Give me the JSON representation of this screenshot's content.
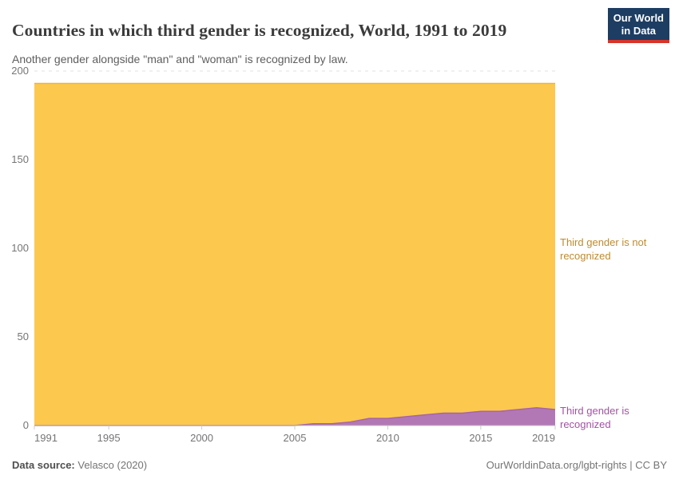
{
  "header": {
    "title": "Countries in which third gender is recognized, World, 1991 to 2019",
    "subtitle": "Another gender alongside \"man\" and \"woman\" is recognized by law."
  },
  "logo": {
    "line1": "Our World",
    "line2": "in Data",
    "bg_color": "#1d3d63",
    "accent_color": "#d8352a"
  },
  "footer": {
    "source_label": "Data source:",
    "source_value": "Velasco (2020)",
    "credit": "OurWorldinData.org/lgbt-rights | CC BY"
  },
  "chart_data": {
    "type": "area",
    "stacked": true,
    "title": "Countries in which third gender is recognized, World, 1991 to 2019",
    "subtitle": "Another gender alongside \"man\" and \"woman\" is recognized by law.",
    "x": [
      1991,
      1992,
      1993,
      1994,
      1995,
      1996,
      1997,
      1998,
      1999,
      2000,
      2001,
      2002,
      2003,
      2004,
      2005,
      2006,
      2007,
      2008,
      2009,
      2010,
      2011,
      2012,
      2013,
      2014,
      2015,
      2016,
      2017,
      2018,
      2019
    ],
    "series": [
      {
        "name": "Third gender is recognized",
        "color": "#b278b6",
        "edge_color": "#a763a7",
        "label_color": "#a352a3",
        "values": [
          0,
          0,
          0,
          0,
          0,
          0,
          0,
          0,
          0,
          0,
          0,
          0,
          0,
          0,
          0,
          1,
          1,
          2,
          4,
          4,
          5,
          6,
          7,
          7,
          8,
          8,
          9,
          10,
          9
        ]
      },
      {
        "name": "Third gender is not recognized",
        "color": "#fcc84e",
        "edge_color": "#edb53b",
        "label_color": "#bf8b2e",
        "values": [
          193,
          193,
          193,
          193,
          193,
          193,
          193,
          193,
          193,
          193,
          193,
          193,
          193,
          193,
          193,
          192,
          192,
          191,
          189,
          189,
          188,
          187,
          186,
          186,
          185,
          185,
          184,
          183,
          184
        ]
      }
    ],
    "total_countries": 193,
    "ylim": [
      0,
      200
    ],
    "yticks": [
      0,
      50,
      100,
      150,
      200
    ],
    "xticks": [
      1991,
      1995,
      2000,
      2005,
      2010,
      2015,
      2019
    ],
    "grid": "dashed-horizontal",
    "legend_position": "right-entity-labels",
    "grid_color": "#e1e1e1",
    "axis_color": "#bbbbbb"
  }
}
